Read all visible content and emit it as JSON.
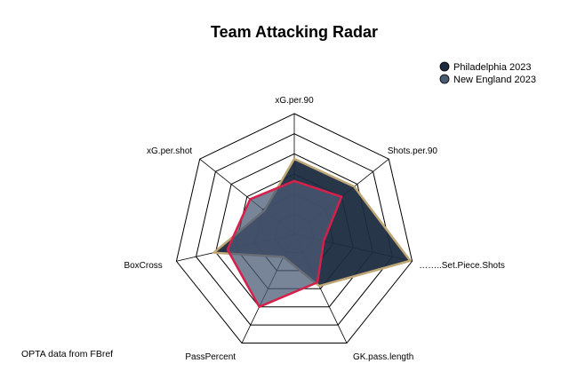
{
  "chart_data": {
    "type": "radar",
    "title": "Team Attacking Radar",
    "axes": [
      "xG.per.90",
      "Shots.per.90",
      "……..Set.Piece.Shots",
      "GK.pass.length",
      "PassPercent",
      "BoxCross",
      "xG.per.shot"
    ],
    "grid_levels": 5,
    "range": [
      0,
      1
    ],
    "series": [
      {
        "name": "Philadelphia 2023",
        "values": [
          0.55,
          0.56,
          0.98,
          0.37,
          0.05,
          0.62,
          0.18
        ],
        "fill_color": "#1c2b3f",
        "line_color": "#bfa776",
        "legend_color": "#1c2b3f"
      },
      {
        "name": "New England 2023",
        "values": [
          0.33,
          0.4,
          0.1,
          0.33,
          0.6,
          0.48,
          0.36
        ],
        "fill_color": "#4b5b74",
        "line_color": "#d4204a",
        "legend_color": "#4b5b74"
      }
    ],
    "legend_position": "top-right",
    "caption": "OPTA data from FBref"
  }
}
